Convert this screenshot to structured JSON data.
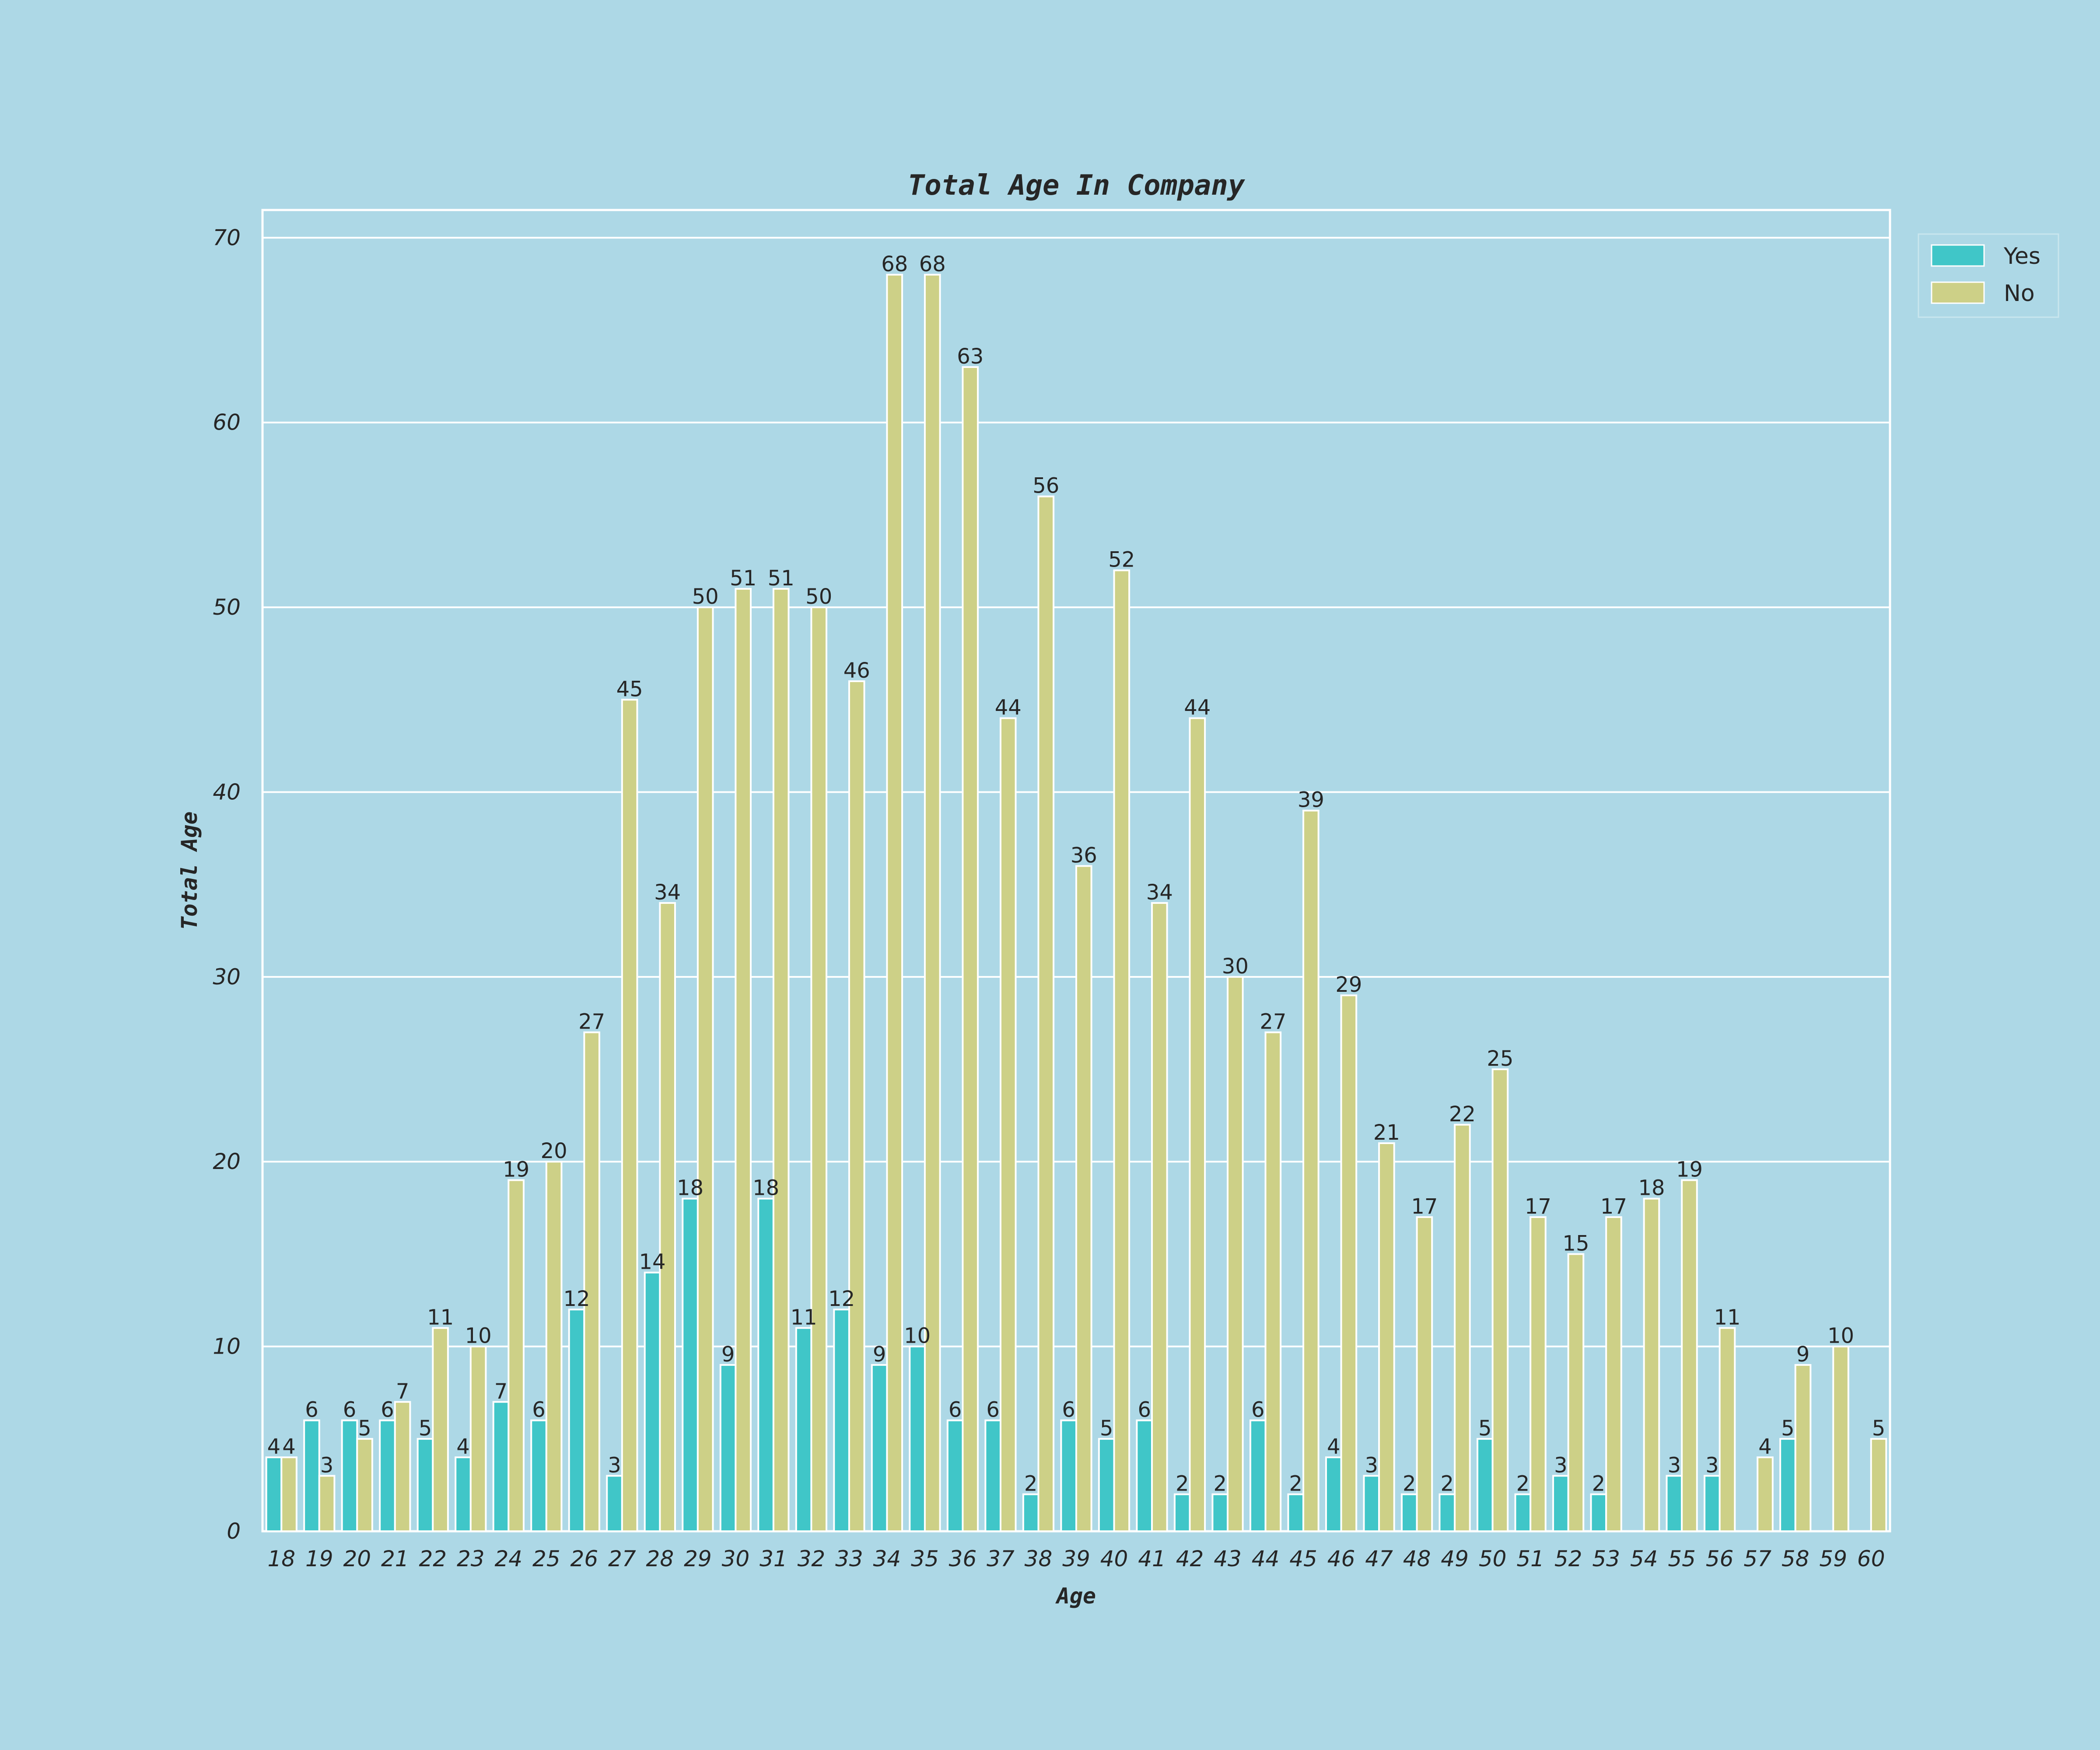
{
  "chart_data": {
    "type": "bar",
    "title": "Total Age In Company",
    "xlabel": "Age",
    "ylabel": "Total Age",
    "ylim": [
      0,
      71.5
    ],
    "yticks": [
      0,
      10,
      20,
      30,
      40,
      50,
      60,
      70
    ],
    "grid": true,
    "legend_position": "top-right (outside)",
    "categories": [
      "18",
      "19",
      "20",
      "21",
      "22",
      "23",
      "24",
      "25",
      "26",
      "27",
      "28",
      "29",
      "30",
      "31",
      "32",
      "33",
      "34",
      "35",
      "36",
      "37",
      "38",
      "39",
      "40",
      "41",
      "42",
      "43",
      "44",
      "45",
      "46",
      "47",
      "48",
      "49",
      "50",
      "51",
      "52",
      "53",
      "54",
      "55",
      "56",
      "57",
      "58",
      "59",
      "60"
    ],
    "series": [
      {
        "name": "Yes",
        "color": "#40c6c8",
        "values": [
          4,
          6,
          6,
          6,
          5,
          4,
          7,
          6,
          12,
          3,
          14,
          18,
          9,
          18,
          11,
          12,
          9,
          10,
          6,
          6,
          2,
          6,
          5,
          6,
          2,
          2,
          6,
          2,
          4,
          3,
          2,
          2,
          5,
          2,
          3,
          2,
          null,
          3,
          3,
          null,
          5,
          null,
          null
        ]
      },
      {
        "name": "No",
        "color": "#cdd087",
        "values": [
          4,
          3,
          5,
          7,
          11,
          10,
          19,
          20,
          27,
          45,
          34,
          50,
          51,
          51,
          50,
          46,
          68,
          68,
          63,
          44,
          56,
          36,
          52,
          34,
          44,
          30,
          27,
          39,
          29,
          21,
          17,
          22,
          25,
          17,
          15,
          17,
          18,
          19,
          11,
          4,
          9,
          10,
          5
        ]
      }
    ]
  }
}
